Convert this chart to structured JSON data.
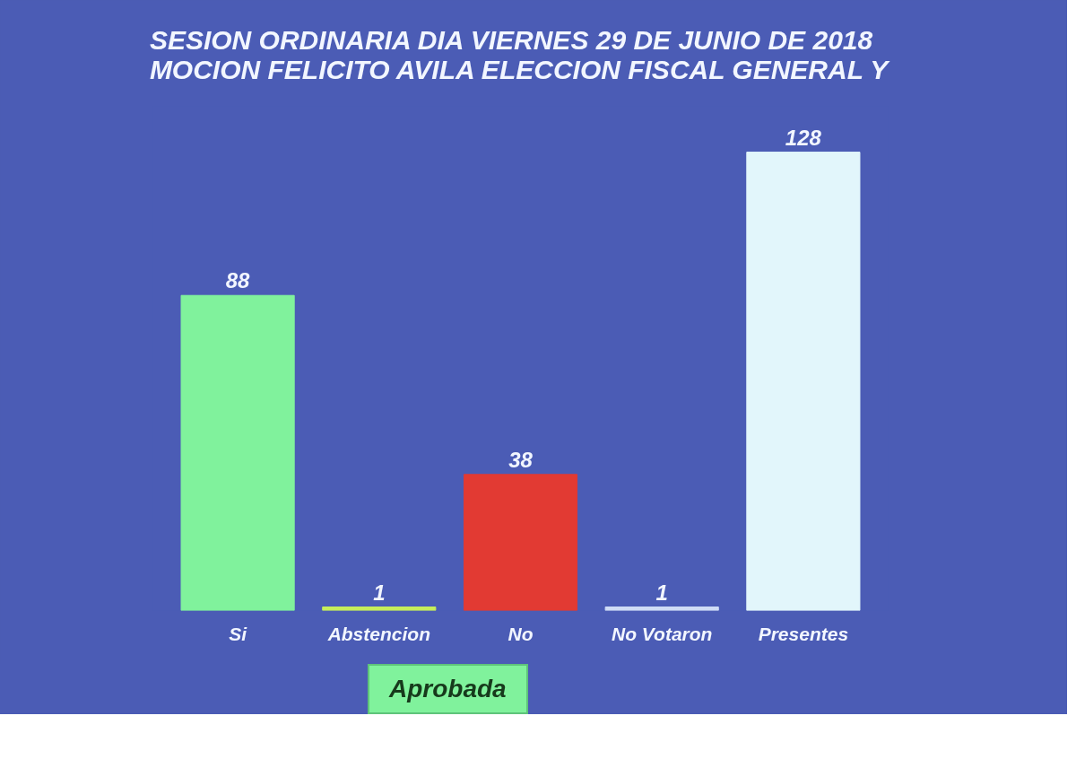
{
  "chart_data": {
    "type": "bar",
    "title": "SESION ORDINARIA DIA VIERNES 29 DE JUNIO DE 2018\nMOCION FELICITO AVILA ELECCION FISCAL GENERAL Y",
    "categories": [
      "Si",
      "Abstencion",
      "No",
      "No Votaron",
      "Presentes"
    ],
    "values": [
      88,
      1,
      38,
      1,
      128
    ],
    "colors": [
      "#80f29c",
      "#c6ee5a",
      "#e23a33",
      "#cfdcf6",
      "#e2f6fb"
    ],
    "data_labels": true,
    "annotations": [
      "Aprobada"
    ]
  }
}
